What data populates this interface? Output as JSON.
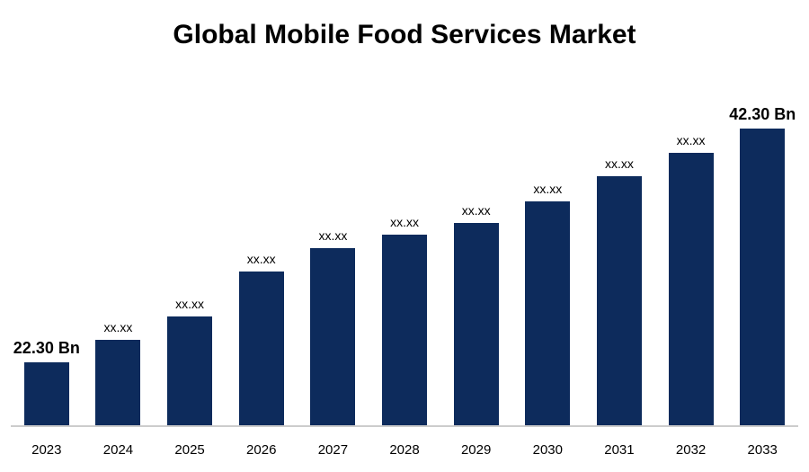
{
  "title": "Global Mobile Food Services Market",
  "chart_data": {
    "type": "bar",
    "title": "Global Mobile Food Services Market",
    "categories": [
      "2023",
      "2024",
      "2025",
      "2026",
      "2027",
      "2028",
      "2029",
      "2030",
      "2031",
      "2032",
      "2033"
    ],
    "values": [
      22.3,
      24.2,
      26.2,
      30.1,
      32.1,
      33.2,
      34.2,
      36.1,
      38.2,
      40.2,
      42.3
    ],
    "values_estimated": true,
    "value_labels": [
      "22.30 Bn",
      "xx.xx",
      "xx.xx",
      "xx.xx",
      "xx.xx",
      "xx.xx",
      "xx.xx",
      "xx.xx",
      "xx.xx",
      "xx.xx",
      "42.30 Bn"
    ],
    "first_bar_label": "22.30 Bn",
    "last_bar_label": "42.30 Bn",
    "unit": "Bn",
    "xlabel": "",
    "ylabel": "",
    "ylim": [
      16.9,
      42.3
    ],
    "grid": false,
    "legend": false,
    "bar_color": "#0d2b5c",
    "axis_line_color": "#cccccc",
    "label_color": "#000000"
  }
}
